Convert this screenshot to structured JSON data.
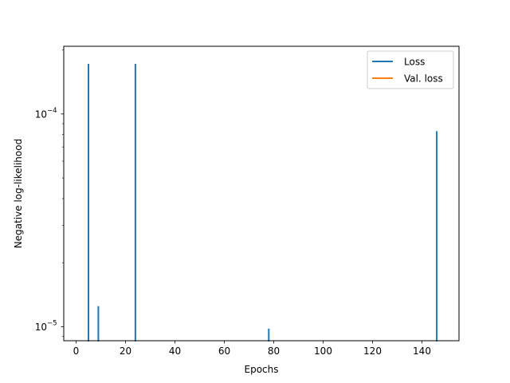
{
  "chart_data": {
    "type": "line",
    "xlabel": "Epochs",
    "ylabel": "Negative log-likelihood",
    "yscale": "log",
    "xlim": [
      -5,
      155
    ],
    "ylim": [
      8.6e-06,
      0.000208
    ],
    "grid": false,
    "legend_position": "top-right",
    "x_ticks": [
      {
        "value": 0,
        "label": "0"
      },
      {
        "value": 20,
        "label": "20"
      },
      {
        "value": 40,
        "label": "40"
      },
      {
        "value": 60,
        "label": "60"
      },
      {
        "value": 80,
        "label": "80"
      },
      {
        "value": 100,
        "label": "100"
      },
      {
        "value": 120,
        "label": "120"
      },
      {
        "value": 140,
        "label": "140"
      }
    ],
    "y_ticks": [
      {
        "value": 1e-05,
        "base": "10",
        "exponent": "−5"
      },
      {
        "value": 0.0001,
        "base": "10",
        "exponent": "−4"
      }
    ],
    "series": [
      {
        "name": "Loss",
        "color": "#1f77b4",
        "points": [
          {
            "x": 5,
            "y": 0.000172
          },
          {
            "x": 9,
            "y": 1.25e-05
          },
          {
            "x": 24,
            "y": 0.000172
          },
          {
            "x": 78,
            "y": 9.8e-06
          },
          {
            "x": 146,
            "y": 8.3e-05
          }
        ]
      },
      {
        "name": "Val. loss",
        "color": "#ff7f0e",
        "points": []
      }
    ]
  }
}
